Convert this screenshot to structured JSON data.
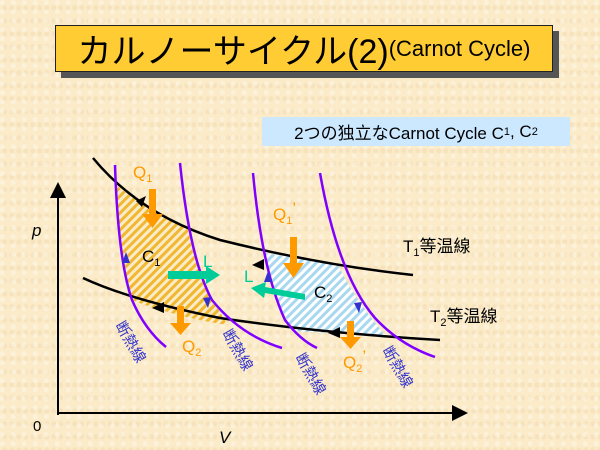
{
  "title": {
    "main": "カルノーサイクル(2)",
    "sub": "(Carnot Cycle)"
  },
  "subtitle": {
    "text": "2つの独立なCarnot Cycle C",
    "c1": "1",
    "sep": ", C",
    "c2": "2"
  },
  "axes": {
    "y_label": "p",
    "x_label": "V",
    "origin": "0"
  },
  "labels": {
    "q1": "Q",
    "q1_sub": "1",
    "q2": "Q",
    "q2_sub": "2",
    "q1p": "Q",
    "q1p_sub": "1",
    "q1p_prime": "’",
    "q2p": "Q",
    "q2p_sub": "2",
    "q2p_prime": "’",
    "c1": "C",
    "c1_sub": "1",
    "c2": "C",
    "c2_sub": "2",
    "l1": "L",
    "l2": "L",
    "t1": "T",
    "t1_sub": "1",
    "t1_text": "等温線",
    "t2": "T",
    "t2_sub": "2",
    "t2_text": "等温線",
    "adiabat": "断熱線"
  },
  "colors": {
    "title_bg": "#FFCC33",
    "subtitle_bg": "#CCE8FF",
    "adiabat": "#8000FF",
    "heat": "#FF9900",
    "work": "#00CC99",
    "adiabat_label": "#3333CC",
    "c1_hatch": "#F0B830",
    "c2_hatch": "#A8D8F0"
  }
}
